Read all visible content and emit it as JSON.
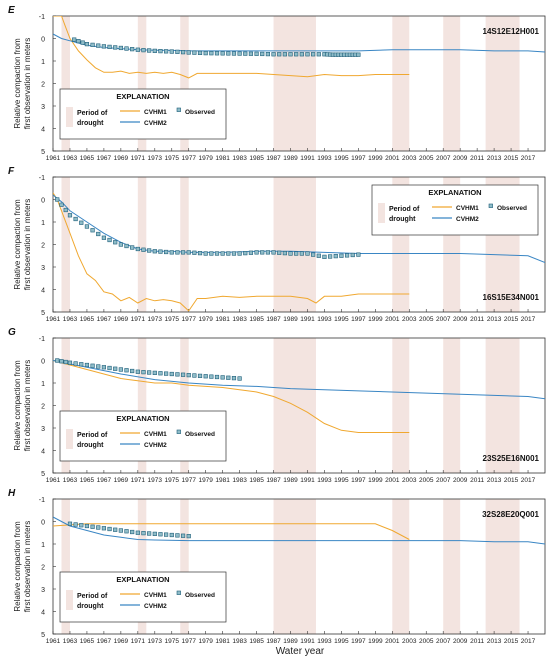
{
  "figure": {
    "xlabel": "Water year",
    "ylabel_line1": "Relative compaction from",
    "ylabel_line2": "first observation in meters",
    "x_ticks": [
      "1961",
      "1963",
      "1965",
      "1967",
      "1969",
      "1971",
      "1973",
      "1975",
      "1977",
      "1979",
      "1981",
      "1983",
      "1985",
      "1987",
      "1989",
      "1991",
      "1993",
      "1995",
      "1997",
      "1999",
      "2001",
      "2003",
      "2005",
      "2007",
      "2009",
      "2011",
      "2013",
      "2015",
      "2017"
    ],
    "y_ticks": [
      "-1",
      "0",
      "1",
      "2",
      "3",
      "4",
      "5"
    ],
    "drought_periods": [
      [
        1962,
        1963
      ],
      [
        1976,
        1977
      ],
      [
        1987,
        1992
      ],
      [
        2007,
        2009
      ],
      [
        2012,
        2016
      ]
    ],
    "drought_wide": [
      [
        1971,
        1972
      ],
      [
        2001,
        2003
      ]
    ],
    "colors": {
      "cvhm1": "#f0a830",
      "cvhm2": "#3a86c4",
      "observed_edge": "#1e5f7a",
      "observed_fill": "#8fbcc8",
      "drought": "#f3e4e0"
    }
  },
  "legend": {
    "title": "EXPLANATION",
    "period_line1": "Period of",
    "period_line2": "drought",
    "cvhm1": "CVHM1",
    "cvhm2": "CVHM2",
    "observed": "Observed"
  },
  "chart_data": [
    {
      "panel": "E",
      "type": "line",
      "well": "14S12E12H001",
      "xlim": [
        1961,
        2019
      ],
      "ylim": [
        5,
        -1
      ],
      "legend_position": "bottom-left",
      "series": [
        {
          "name": "CVHM1",
          "x": [
            1961,
            1962,
            1962.5,
            1963,
            1964,
            1965,
            1966,
            1967,
            1968,
            1969,
            1970,
            1971,
            1972,
            1973,
            1974,
            1975,
            1976,
            1977,
            1978,
            1979,
            1981,
            1983,
            1985,
            1987,
            1989,
            1991,
            1993,
            1995,
            1997,
            1999,
            2001,
            2003
          ],
          "y": [
            -1,
            -1,
            -0.5,
            0,
            0.55,
            0.95,
            1.3,
            1.5,
            1.5,
            1.45,
            1.55,
            1.5,
            1.55,
            1.5,
            1.55,
            1.5,
            1.6,
            1.75,
            1.55,
            1.55,
            1.55,
            1.55,
            1.55,
            1.6,
            1.65,
            1.7,
            1.6,
            1.65,
            1.65,
            1.6,
            1.6,
            1.6
          ]
        },
        {
          "name": "CVHM2",
          "x": [
            1961,
            1962,
            1963,
            1964,
            1965,
            1967,
            1969,
            1971,
            1973,
            1975,
            1977,
            1979,
            1981,
            1985,
            1989,
            1993,
            1997,
            2001,
            2005,
            2009,
            2013,
            2017,
            2019
          ],
          "y": [
            -0.2,
            0,
            0.1,
            0.2,
            0.3,
            0.4,
            0.45,
            0.5,
            0.52,
            0.53,
            0.55,
            0.55,
            0.55,
            0.55,
            0.55,
            0.55,
            0.55,
            0.5,
            0.5,
            0.5,
            0.55,
            0.55,
            0.6
          ]
        },
        {
          "name": "Observed",
          "x": [
            1963.5,
            1965,
            1967,
            1969,
            1971,
            1973,
            1975,
            1977,
            1979,
            1981,
            1983,
            1985,
            1987,
            1989,
            1991,
            1993,
            1994,
            1995,
            1996,
            1997
          ],
          "y": [
            0.05,
            0.25,
            0.35,
            0.42,
            0.5,
            0.55,
            0.58,
            0.62,
            0.65,
            0.66,
            0.67,
            0.68,
            0.7,
            0.7,
            0.7,
            0.7,
            0.72,
            0.72,
            0.72,
            0.72
          ]
        }
      ]
    },
    {
      "panel": "F",
      "type": "line",
      "well": "16S15E34N001",
      "xlim": [
        1961,
        2019
      ],
      "ylim": [
        5,
        -1
      ],
      "legend_position": "top-right",
      "series": [
        {
          "name": "CVHM1",
          "x": [
            1961,
            1961.5,
            1962,
            1963,
            1964,
            1965,
            1966,
            1967,
            1968,
            1969,
            1970,
            1971,
            1972,
            1973,
            1974,
            1975,
            1976,
            1977,
            1978,
            1979,
            1981,
            1983,
            1985,
            1987,
            1989,
            1991,
            1992,
            1993,
            1995,
            1997,
            1999,
            2001,
            2003
          ],
          "y": [
            -0.3,
            0,
            0.5,
            1.5,
            2.5,
            3.3,
            3.6,
            4.1,
            4.2,
            4.5,
            4.35,
            4.6,
            4.4,
            4.5,
            4.45,
            4.5,
            4.6,
            4.95,
            4.4,
            4.4,
            4.3,
            4.35,
            4.3,
            4.3,
            4.3,
            4.4,
            4.6,
            4.3,
            4.3,
            4.2,
            4.2,
            4.2,
            4.2
          ]
        },
        {
          "name": "CVHM2",
          "x": [
            1961,
            1962,
            1963,
            1965,
            1967,
            1969,
            1971,
            1973,
            1975,
            1977,
            1979,
            1981,
            1985,
            1989,
            1993,
            1997,
            2001,
            2005,
            2009,
            2013,
            2017,
            2019
          ],
          "y": [
            -0.2,
            0.1,
            0.5,
            1.0,
            1.5,
            1.9,
            2.2,
            2.3,
            2.3,
            2.35,
            2.35,
            2.35,
            2.3,
            2.3,
            2.35,
            2.4,
            2.4,
            2.4,
            2.4,
            2.45,
            2.5,
            2.8
          ]
        },
        {
          "name": "Observed",
          "x": [
            1961.5,
            1963,
            1965,
            1967,
            1969,
            1971,
            1973,
            1975,
            1977,
            1979,
            1981,
            1983,
            1985,
            1987,
            1989,
            1991,
            1993,
            1995,
            1997
          ],
          "y": [
            0,
            0.7,
            1.2,
            1.7,
            2.0,
            2.2,
            2.3,
            2.35,
            2.35,
            2.4,
            2.4,
            2.4,
            2.35,
            2.35,
            2.4,
            2.4,
            2.55,
            2.5,
            2.45
          ]
        }
      ]
    },
    {
      "panel": "G",
      "type": "line",
      "well": "23S25E16N001",
      "xlim": [
        1961,
        2019
      ],
      "ylim": [
        5,
        -1
      ],
      "legend_position": "bottom-left",
      "series": [
        {
          "name": "CVHM1",
          "x": [
            1961,
            1963,
            1965,
            1967,
            1969,
            1971,
            1973,
            1975,
            1977,
            1979,
            1981,
            1983,
            1985,
            1987,
            1989,
            1991,
            1993,
            1995,
            1997,
            1999,
            2001,
            2003
          ],
          "y": [
            0,
            0.2,
            0.4,
            0.6,
            0.8,
            0.9,
            1.0,
            1.0,
            1.1,
            1.15,
            1.2,
            1.3,
            1.4,
            1.6,
            1.9,
            2.3,
            2.8,
            3.1,
            3.2,
            3.2,
            3.2,
            3.2
          ]
        },
        {
          "name": "CVHM2",
          "x": [
            1961,
            1965,
            1969,
            1973,
            1977,
            1981,
            1985,
            1989,
            1993,
            1997,
            2001,
            2005,
            2009,
            2013,
            2017,
            2019
          ],
          "y": [
            0,
            0.3,
            0.6,
            0.85,
            1.0,
            1.1,
            1.15,
            1.25,
            1.3,
            1.35,
            1.4,
            1.45,
            1.5,
            1.55,
            1.6,
            1.7
          ]
        },
        {
          "name": "Observed",
          "x": [
            1961.5,
            1963,
            1965,
            1967,
            1969,
            1971,
            1973,
            1975,
            1977,
            1979,
            1981,
            1983
          ],
          "y": [
            0,
            0.1,
            0.2,
            0.3,
            0.4,
            0.5,
            0.55,
            0.6,
            0.65,
            0.7,
            0.75,
            0.8
          ]
        }
      ]
    },
    {
      "panel": "H",
      "type": "line",
      "well": "32S28E20Q001",
      "xlim": [
        1961,
        2019
      ],
      "ylim": [
        5,
        -1
      ],
      "legend_position": "bottom-left",
      "series": [
        {
          "name": "CVHM1",
          "x": [
            1961,
            1963,
            1965,
            1967,
            1970,
            1975,
            1980,
            1985,
            1990,
            1995,
            1999,
            2001,
            2003
          ],
          "y": [
            0.2,
            0.15,
            0.1,
            0.1,
            0.1,
            0.1,
            0.1,
            0.1,
            0.1,
            0.1,
            0.1,
            0.4,
            0.8
          ]
        },
        {
          "name": "CVHM2",
          "x": [
            1961,
            1962,
            1963,
            1965,
            1967,
            1969,
            1971,
            1973,
            1977,
            1981,
            1985,
            1989,
            1993,
            1997,
            2001,
            2005,
            2009,
            2013,
            2017,
            2019
          ],
          "y": [
            -0.2,
            0,
            0.2,
            0.4,
            0.6,
            0.7,
            0.8,
            0.82,
            0.85,
            0.85,
            0.85,
            0.85,
            0.85,
            0.85,
            0.85,
            0.85,
            0.85,
            0.9,
            0.9,
            1.0
          ]
        },
        {
          "name": "Observed",
          "x": [
            1963,
            1965,
            1967,
            1969,
            1971,
            1973,
            1975,
            1977
          ],
          "y": [
            0.1,
            0.2,
            0.3,
            0.4,
            0.5,
            0.55,
            0.6,
            0.65
          ]
        }
      ]
    }
  ]
}
